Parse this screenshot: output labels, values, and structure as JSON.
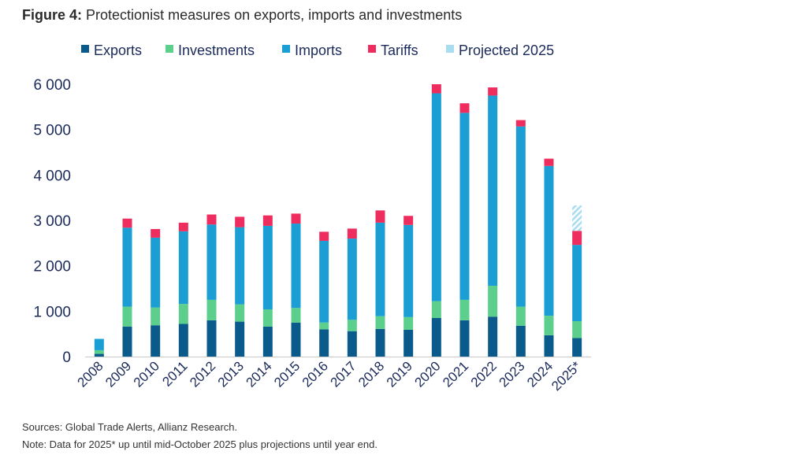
{
  "figure": {
    "label": "Figure 4:",
    "title": "Protectionist measures on exports, imports and investments"
  },
  "chart_data": {
    "type": "bar",
    "stacked": true,
    "categories": [
      "2008",
      "2009",
      "2010",
      "2011",
      "2012",
      "2013",
      "2014",
      "2015",
      "2016",
      "2017",
      "2018",
      "2019",
      "2020",
      "2021",
      "2022",
      "2023",
      "2024",
      "2025*"
    ],
    "series": [
      {
        "name": "Exports",
        "color": "#0b5a8c",
        "values": [
          60,
          660,
          690,
          720,
          800,
          770,
          660,
          750,
          600,
          560,
          610,
          590,
          850,
          800,
          880,
          680,
          470,
          410
        ]
      },
      {
        "name": "Investments",
        "color": "#5dcf8c",
        "values": [
          80,
          440,
          390,
          440,
          450,
          380,
          380,
          320,
          150,
          250,
          280,
          280,
          370,
          450,
          680,
          420,
          430,
          370
        ]
      },
      {
        "name": "Imports",
        "color": "#1a9ed4",
        "values": [
          250,
          1740,
          1540,
          1600,
          1660,
          1700,
          1840,
          1860,
          1800,
          1790,
          2060,
          2030,
          4580,
          4120,
          4190,
          3970,
          3300,
          1680
        ]
      },
      {
        "name": "Tariffs",
        "color": "#ee2d5e",
        "values": [
          0,
          200,
          190,
          190,
          220,
          230,
          230,
          220,
          200,
          220,
          270,
          200,
          200,
          210,
          180,
          140,
          160,
          310
        ]
      },
      {
        "name": "Projected 2025",
        "color": "#a8dcef",
        "values": [
          0,
          0,
          0,
          0,
          0,
          0,
          0,
          0,
          0,
          0,
          0,
          0,
          0,
          0,
          0,
          0,
          0,
          560
        ]
      }
    ],
    "yticks": [
      0,
      1000,
      2000,
      3000,
      4000,
      5000,
      6000
    ],
    "ytick_labels": [
      "0",
      "1 000",
      "2 000",
      "3 000",
      "4 000",
      "5 000",
      "6 000"
    ],
    "ylim": [
      0,
      6000
    ],
    "xlabel": "",
    "ylabel": "",
    "grid": false,
    "legend_position": "top"
  },
  "footer": {
    "sources": "Sources: Global Trade Alerts, Allianz Research.",
    "note": "Note: Data for 2025* up until mid-October 2025 plus projections until year end."
  }
}
